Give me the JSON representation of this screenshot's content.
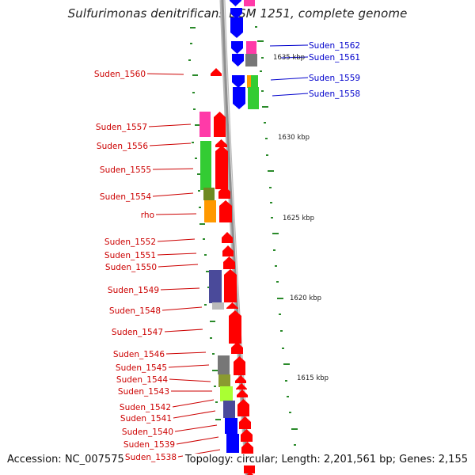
{
  "title": "Sulfurimonas denitrificans DSM 1251, complete genome",
  "footer": {
    "accession": "Accession: NC_007575",
    "summary": "Topology: circular; Length: 2,201,561 bp; Genes: 2,155"
  },
  "colors": {
    "backbone": "#8f8f8f",
    "reverse_label": "#cc0000",
    "forward_label": "#0000cc",
    "tick": "#2a8a2a"
  },
  "scale_labels": [
    "1635 kbp",
    "1630 kbp",
    "1625 kbp",
    "1620 kbp",
    "1615 kbp"
  ],
  "reverse_genes": [
    "Suden_1560",
    "Suden_1557",
    "Suden_1556",
    "Suden_1555",
    "Suden_1554",
    "rho",
    "Suden_1552",
    "Suden_1551",
    "Suden_1550",
    "Suden_1549",
    "Suden_1548",
    "Suden_1547",
    "Suden_1546",
    "Suden_1545",
    "Suden_1544",
    "Suden_1543",
    "Suden_1542",
    "Suden_1541",
    "Suden_1540",
    "Suden_1539",
    "Suden_1538"
  ],
  "forward_genes": [
    "Suden_1562",
    "Suden_1561",
    "Suden_1559",
    "Suden_1558"
  ],
  "feature_colors": {
    "cds_reverse": "#ff0000",
    "cds_forward": "#0000ff",
    "cog_pink": "#ff3aa8",
    "cog_green": "#33cc33",
    "cog_olive": "#6e8a22",
    "cog_orange": "#ff9900",
    "cog_slate": "#4a4a9a",
    "cog_grey": "#777777",
    "cog_lime": "#aaff33",
    "cog_khaki": "#8a9a30"
  }
}
